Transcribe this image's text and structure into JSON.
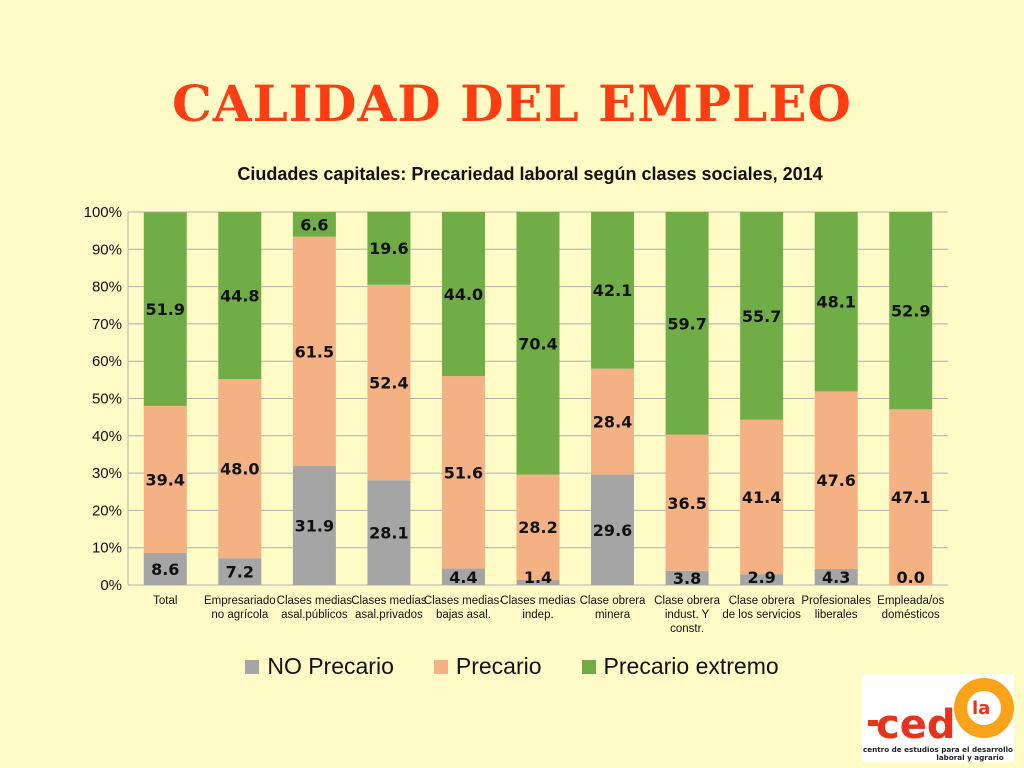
{
  "slide": {
    "title": "CALIDAD DEL EMPLEO"
  },
  "logo": {
    "text": "ced",
    "superscript": "la",
    "tagline_1": "centro de estudios para el desarrollo",
    "tagline_2": "laboral y agrario"
  },
  "colors": {
    "background": "#fffbc6",
    "title": "#ff3d12",
    "no_precario": "#a5a5a5",
    "precario": "#f4b183",
    "precario_extremo": "#70ad47",
    "logo_red": "#e8321c",
    "logo_orange": "#f9a31b"
  },
  "chart_data": {
    "type": "bar",
    "stacked": true,
    "percent": true,
    "title": "Ciudades capitales: Precariedad laboral según clases sociales, 2014",
    "ylim": [
      0,
      100
    ],
    "yticks": [
      "0%",
      "10%",
      "20%",
      "30%",
      "40%",
      "50%",
      "60%",
      "70%",
      "80%",
      "90%",
      "100%"
    ],
    "grid": true,
    "legend_position": "bottom",
    "categories": [
      [
        "Total"
      ],
      [
        "Empresariado",
        "no agrícola"
      ],
      [
        "Clases medias",
        "asal.públicos"
      ],
      [
        "Clases medias",
        "asal.privados"
      ],
      [
        "Clases medias-",
        "bajas asal."
      ],
      [
        "Clases medias",
        "indep."
      ],
      [
        "Clase obrera",
        "minera"
      ],
      [
        "Clase obrera",
        "indust. Y",
        "constr."
      ],
      [
        "Clase obrera",
        "de los servicios"
      ],
      [
        "Profesionales",
        "liberales"
      ],
      [
        "Empleada/os",
        "domésticos"
      ]
    ],
    "series": [
      {
        "name": "NO Precario",
        "color": "#a5a5a5",
        "values": [
          8.6,
          7.2,
          31.9,
          28.1,
          4.4,
          1.4,
          29.6,
          3.8,
          2.9,
          4.3,
          0.0
        ]
      },
      {
        "name": "Precario",
        "color": "#f4b183",
        "values": [
          39.4,
          48.0,
          61.5,
          52.4,
          51.6,
          28.2,
          28.4,
          36.5,
          41.4,
          47.6,
          47.1
        ]
      },
      {
        "name": "Precario extremo",
        "color": "#70ad47",
        "values": [
          51.9,
          44.8,
          6.6,
          19.6,
          44.0,
          70.4,
          42.1,
          59.7,
          55.7,
          48.1,
          52.9
        ]
      }
    ],
    "labels": [
      [
        "8.6",
        "7.2",
        "31.9",
        "28.1",
        "4.4",
        "1.4",
        "29.6",
        "3.8",
        "2.9",
        "4.3",
        "0.0"
      ],
      [
        "39.4",
        "48.0",
        "61.5",
        "52.4",
        "51.6",
        "28.2",
        "28.4",
        "36.5",
        "41.4",
        "47.6",
        "47.1"
      ],
      [
        "51.9",
        "44.8",
        "6.6",
        "19.6",
        "44.0",
        "70.4",
        "42.1",
        "59.7",
        "55.7",
        "48.1",
        "52.9"
      ]
    ]
  }
}
